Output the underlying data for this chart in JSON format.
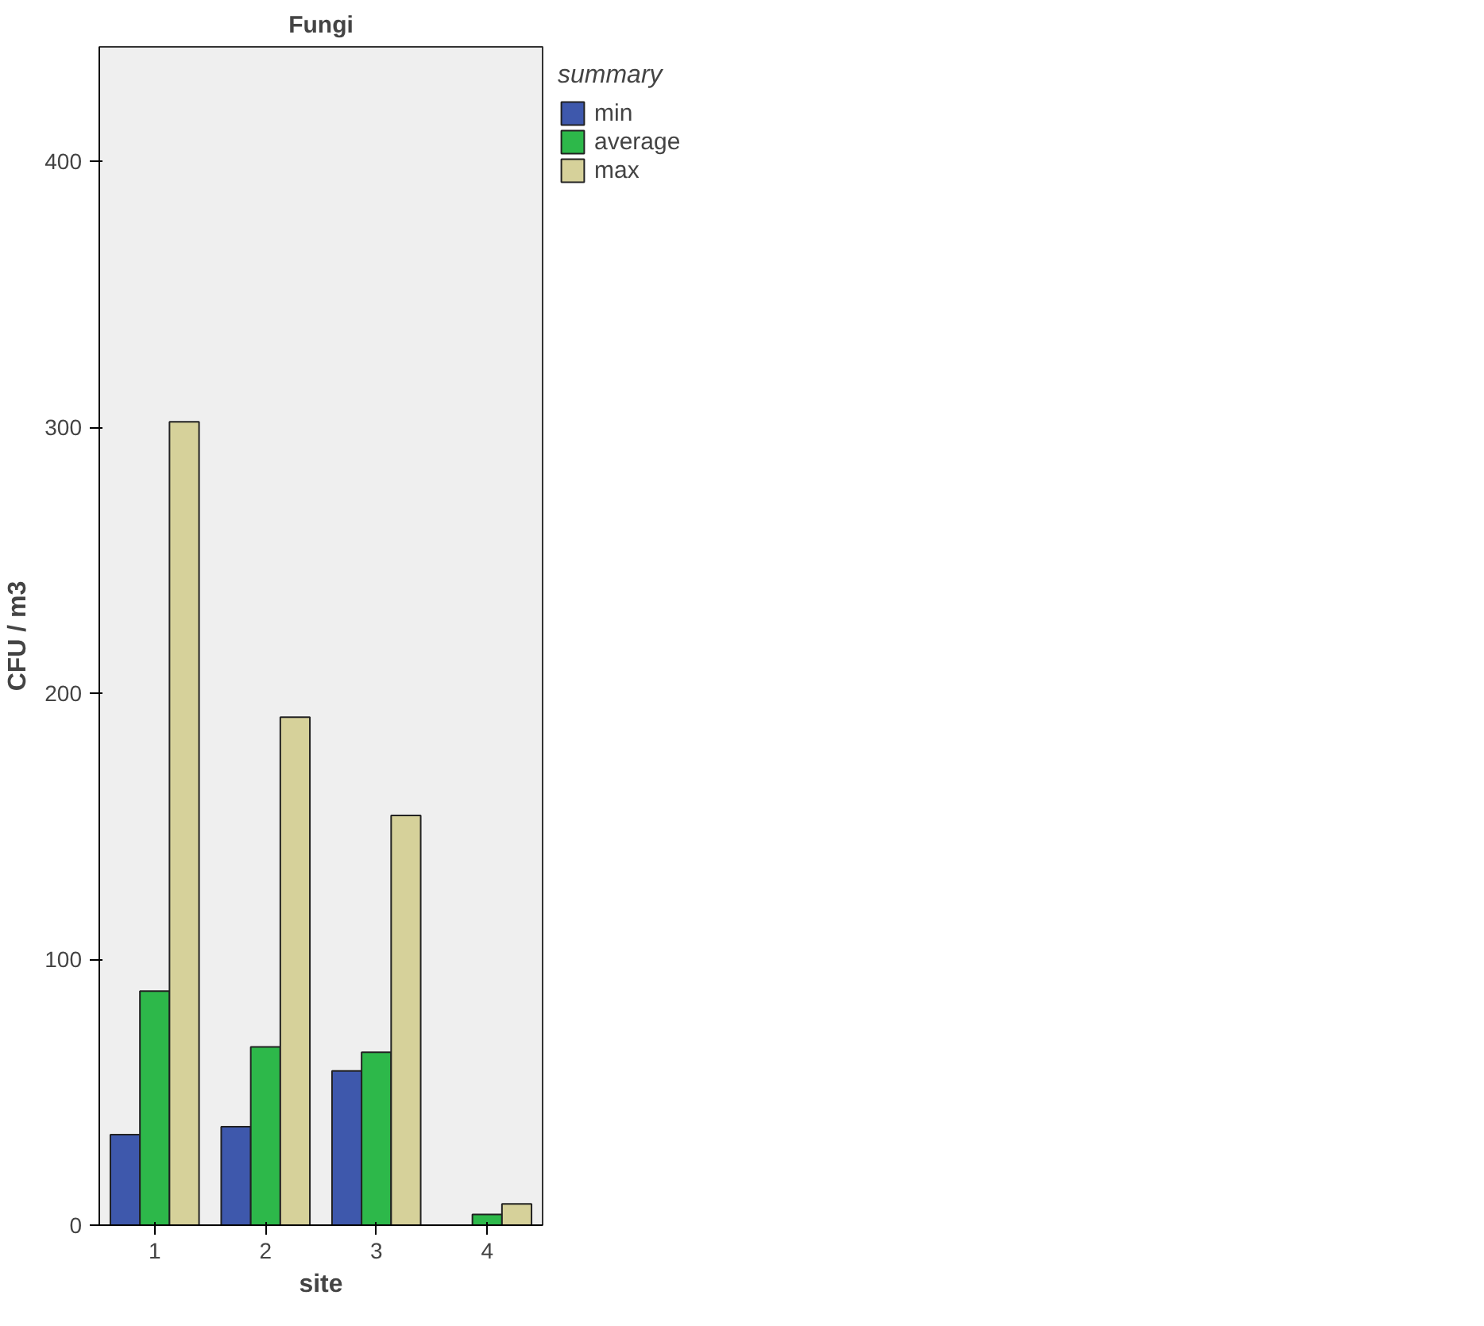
{
  "chart_data": {
    "type": "bar",
    "title": "Fungi",
    "xlabel": "site",
    "ylabel": "CFU / m3",
    "legend_title": "summary",
    "legend": "right",
    "categories": [
      "1",
      "2",
      "3",
      "4"
    ],
    "series": [
      {
        "name": "min",
        "color": "#3e58ac",
        "values": [
          34,
          37,
          58,
          null
        ]
      },
      {
        "name": "average",
        "color": "#2db84a",
        "values": [
          88,
          67,
          65,
          4
        ]
      },
      {
        "name": "max",
        "color": "#d6d19a",
        "values": [
          302,
          191,
          154,
          8
        ]
      }
    ],
    "ylim": [
      0,
      443
    ],
    "yticks": [
      0,
      100,
      200,
      300,
      400
    ],
    "grid": false
  }
}
